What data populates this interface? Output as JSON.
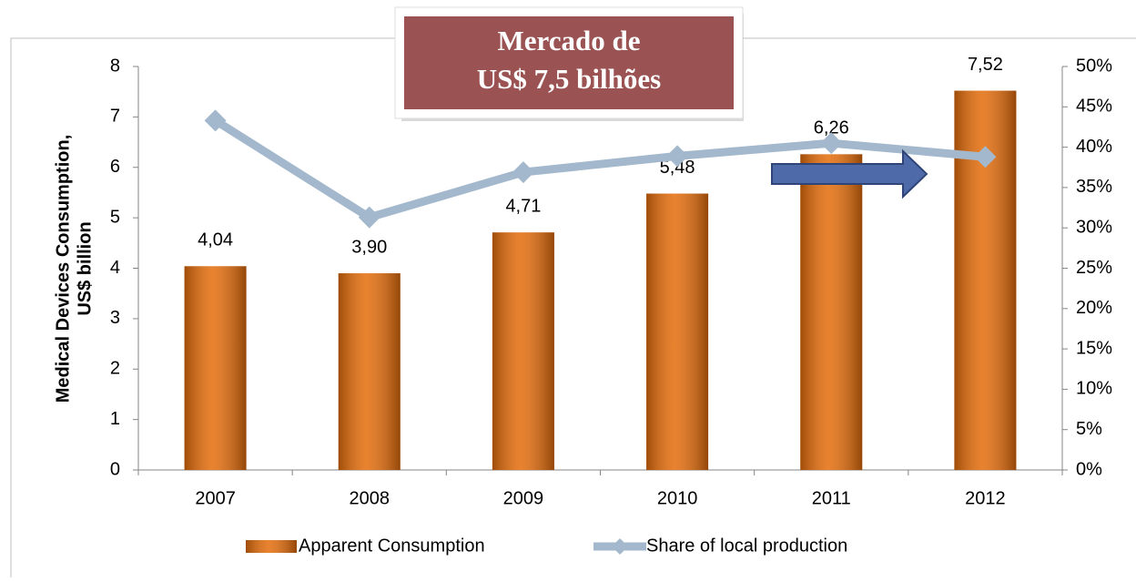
{
  "chart_data": {
    "type": "bar",
    "annotation": [
      "Mercado de",
      "US$ 7,5 bilhões"
    ],
    "ylabel": [
      "Medical Devices Consumption,",
      "US$ billion"
    ],
    "categories": [
      "2007",
      "2008",
      "2009",
      "2010",
      "2011",
      "2012"
    ],
    "series": [
      {
        "name": "Apparent Consumption",
        "type": "bar",
        "color": "#e46c0a",
        "values": [
          4.04,
          3.9,
          4.71,
          5.48,
          6.26,
          7.52
        ],
        "value_labels": [
          "4,04",
          "3,90",
          "4,71",
          "5,48",
          "6,26",
          "7,52"
        ]
      },
      {
        "name": "Share of local production",
        "type": "line",
        "axis": "y2",
        "color": "#a3b8cc",
        "values": [
          43.3,
          31.3,
          36.9,
          38.9,
          40.5,
          38.8
        ]
      }
    ],
    "ylim": [
      0,
      8
    ],
    "yticks": [
      0,
      1,
      2,
      3,
      4,
      5,
      6,
      7,
      8
    ],
    "y2lim": [
      0,
      50
    ],
    "y2ticks": [
      {
        "value": 0,
        "label": "0%"
      },
      {
        "value": 5,
        "label": "5%"
      },
      {
        "value": 10,
        "label": "10%"
      },
      {
        "value": 15,
        "label": "15%"
      },
      {
        "value": 20,
        "label": "20%"
      },
      {
        "value": 25,
        "label": "25%"
      },
      {
        "value": 30,
        "label": "30%"
      },
      {
        "value": 35,
        "label": "35%"
      },
      {
        "value": 40,
        "label": "40%"
      },
      {
        "value": 45,
        "label": "45%"
      },
      {
        "value": 50,
        "label": "50%"
      }
    ],
    "legend": "bottom"
  }
}
